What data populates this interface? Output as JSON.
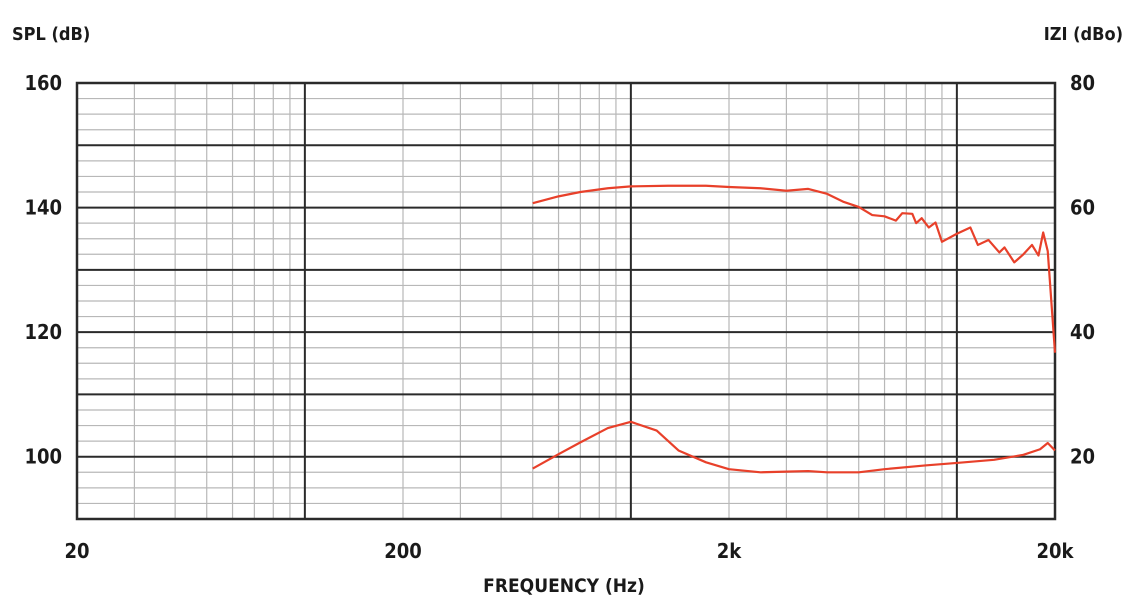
{
  "chart_data": {
    "type": "line",
    "title": "",
    "xlabel": "FREQUENCY (Hz)",
    "ylabel_left": "SPL (dB)",
    "ylabel_right": "IZI (dBo)",
    "x_scale": "log",
    "xlim": [
      20,
      20000
    ],
    "ylim_left": [
      90,
      160
    ],
    "ylim_right": [
      10,
      80
    ],
    "x_ticks": [
      {
        "value": 20,
        "label": "20"
      },
      {
        "value": 200,
        "label": "200"
      },
      {
        "value": 2000,
        "label": "2k"
      },
      {
        "value": 20000,
        "label": "20k"
      }
    ],
    "y_ticks_left": [
      {
        "value": 160,
        "label": "160"
      },
      {
        "value": 140,
        "label": "140"
      },
      {
        "value": 120,
        "label": "120"
      },
      {
        "value": 100,
        "label": "100"
      }
    ],
    "y_ticks_right": [
      {
        "value": 80,
        "label": "80"
      },
      {
        "value": 60,
        "label": "60"
      },
      {
        "value": 40,
        "label": "40"
      },
      {
        "value": 20,
        "label": "20"
      }
    ],
    "grid": true,
    "line_color": "#e8402a",
    "series": [
      {
        "axis": "left",
        "points": [
          [
            500,
            140.7
          ],
          [
            600,
            141.8
          ],
          [
            700,
            142.5
          ],
          [
            850,
            143.1
          ],
          [
            1000,
            143.4
          ],
          [
            1300,
            143.5
          ],
          [
            1700,
            143.5
          ],
          [
            2000,
            143.3
          ],
          [
            2500,
            143.1
          ],
          [
            3000,
            142.7
          ],
          [
            3500,
            143.0
          ],
          [
            4000,
            142.2
          ],
          [
            4500,
            140.9
          ],
          [
            5000,
            140.1
          ],
          [
            5500,
            138.8
          ],
          [
            6000,
            138.6
          ],
          [
            6500,
            137.9
          ],
          [
            6800,
            139.1
          ],
          [
            7300,
            139.0
          ],
          [
            7500,
            137.5
          ],
          [
            7800,
            138.3
          ],
          [
            8200,
            136.8
          ],
          [
            8600,
            137.6
          ],
          [
            9000,
            134.5
          ],
          [
            10000,
            135.8
          ],
          [
            11000,
            136.8
          ],
          [
            11600,
            134.0
          ],
          [
            12500,
            134.8
          ],
          [
            13500,
            132.8
          ],
          [
            14000,
            133.6
          ],
          [
            15000,
            131.2
          ],
          [
            16000,
            132.5
          ],
          [
            17000,
            134.0
          ],
          [
            17800,
            132.3
          ],
          [
            18400,
            136.0
          ],
          [
            19000,
            133.0
          ],
          [
            20000,
            116.7
          ]
        ]
      },
      {
        "axis": "right",
        "points": [
          [
            500,
            18.1
          ],
          [
            600,
            20.4
          ],
          [
            700,
            22.3
          ],
          [
            850,
            24.6
          ],
          [
            1000,
            25.6
          ],
          [
            1200,
            24.2
          ],
          [
            1400,
            21.0
          ],
          [
            1700,
            19.1
          ],
          [
            2000,
            18.0
          ],
          [
            2500,
            17.5
          ],
          [
            3000,
            17.6
          ],
          [
            3500,
            17.7
          ],
          [
            4000,
            17.5
          ],
          [
            5000,
            17.5
          ],
          [
            6000,
            18.0
          ],
          [
            8000,
            18.6
          ],
          [
            10000,
            19.0
          ],
          [
            13000,
            19.5
          ],
          [
            16000,
            20.3
          ],
          [
            18000,
            21.2
          ],
          [
            19000,
            22.2
          ],
          [
            20000,
            21.0
          ]
        ]
      }
    ]
  }
}
